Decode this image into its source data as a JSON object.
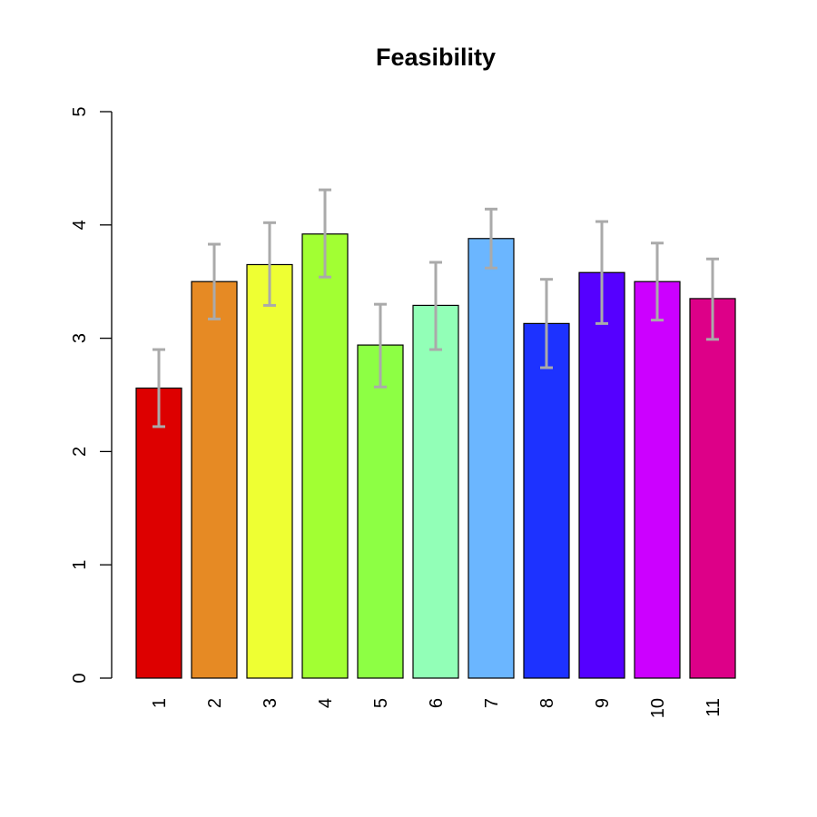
{
  "chart_data": {
    "type": "bar",
    "title": "Feasibility",
    "xlabel": "",
    "ylabel": "",
    "ylim": [
      0,
      5
    ],
    "yticks": [
      0,
      1,
      2,
      3,
      4,
      5
    ],
    "categories": [
      "1",
      "2",
      "3",
      "4",
      "5",
      "6",
      "7",
      "8",
      "9",
      "10",
      "11"
    ],
    "values": [
      2.56,
      3.5,
      3.65,
      3.92,
      2.94,
      3.29,
      3.88,
      3.13,
      3.58,
      3.5,
      3.35
    ],
    "error_low": [
      2.22,
      3.17,
      3.29,
      3.54,
      2.57,
      2.9,
      3.62,
      2.74,
      3.13,
      3.16,
      2.99
    ],
    "error_high": [
      2.9,
      3.83,
      4.02,
      4.31,
      3.3,
      3.67,
      4.14,
      3.52,
      4.03,
      3.84,
      3.7
    ],
    "colors": [
      "#dd0000",
      "#e68a24",
      "#eeff33",
      "#a2ff33",
      "#8dff44",
      "#92ffb7",
      "#6bb6ff",
      "#1d32ff",
      "#5500ff",
      "#cc00ff",
      "#dd0088"
    ],
    "error_bar_color": "#aaaaaa",
    "grid": false,
    "legend": "none"
  }
}
